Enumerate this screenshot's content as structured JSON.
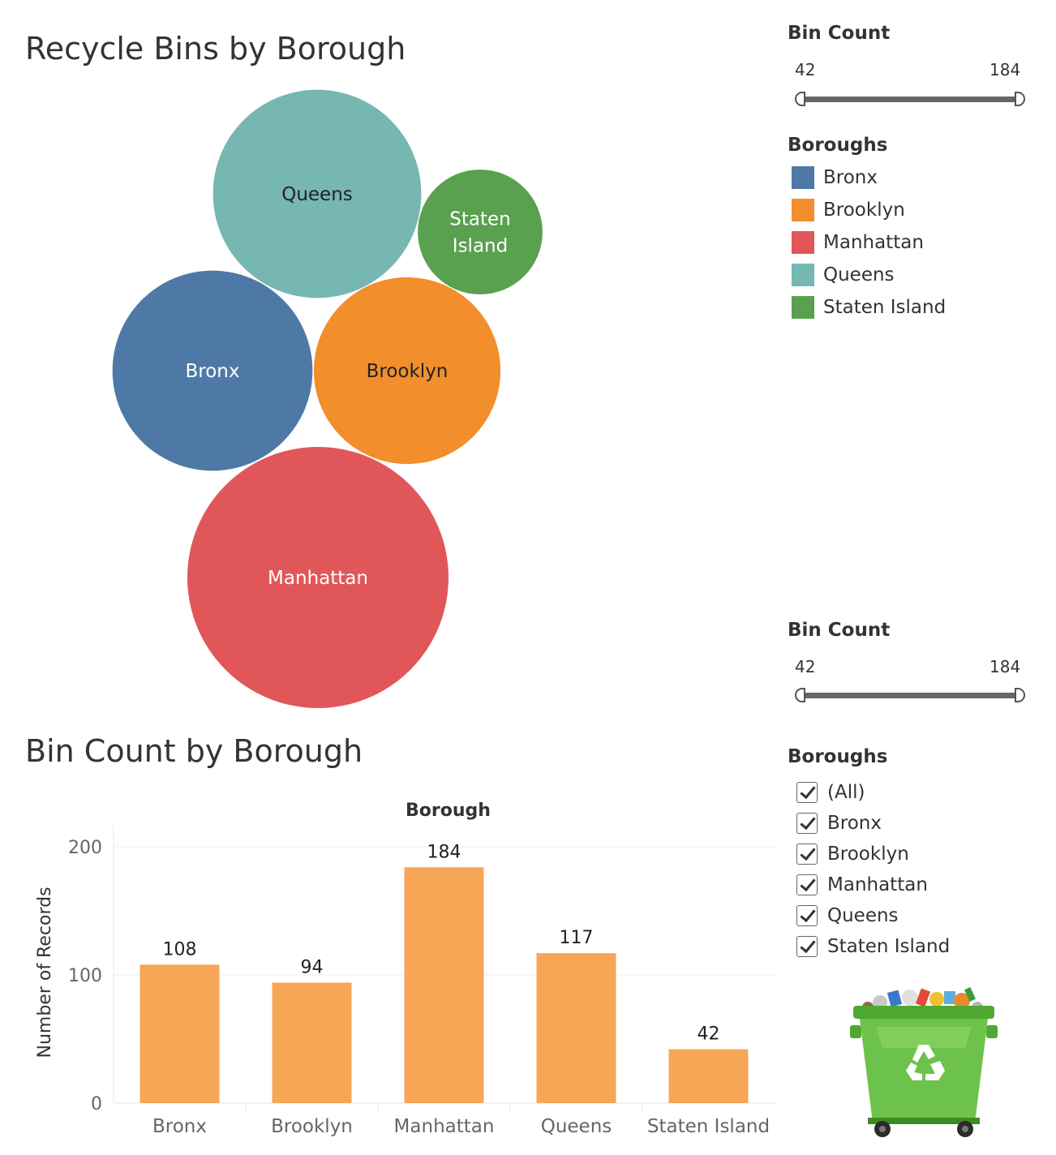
{
  "bubble_title": "Recycle Bins by Borough",
  "bar_title": "Bin Count by Borough",
  "filters_top": {
    "bin_count_title": "Bin Count",
    "min_label": "42",
    "max_label": "184",
    "legend_title": "Boroughs",
    "legend": [
      {
        "label": "Bronx",
        "color": "#4e79a7"
      },
      {
        "label": "Brooklyn",
        "color": "#f28e2b"
      },
      {
        "label": "Manhattan",
        "color": "#e15759"
      },
      {
        "label": "Queens",
        "color": "#76b7b2"
      },
      {
        "label": "Staten Island",
        "color": "#59a14f"
      }
    ]
  },
  "filters_bottom": {
    "bin_count_title": "Bin Count",
    "min_label": "42",
    "max_label": "184",
    "checklist_title": "Boroughs",
    "checklist": [
      "(All)",
      "Bronx",
      "Brooklyn",
      "Manhattan",
      "Queens",
      "Staten Island"
    ]
  },
  "decoration": {
    "icon": "recycle-bin-icon",
    "bin_color": "#6cc24a",
    "symbol_color": "#ffffff"
  },
  "chart_data": [
    {
      "type": "bubble",
      "title": "Recycle Bins by Borough",
      "labels": [
        "Queens",
        "Staten Island",
        "Bronx",
        "Brooklyn",
        "Manhattan"
      ],
      "values": [
        117,
        42,
        108,
        94,
        184
      ],
      "colors": [
        "#76b7b2",
        "#59a14f",
        "#4e79a7",
        "#f28e2b",
        "#e15759"
      ],
      "label_colors": [
        "#222222",
        "#ffffff",
        "#ffffff",
        "#222222",
        "#ffffff"
      ]
    },
    {
      "type": "bar",
      "title": "Bin Count by Borough",
      "xlabel": "Borough",
      "ylabel": "Number of Records",
      "categories": [
        "Bronx",
        "Brooklyn",
        "Manhattan",
        "Queens",
        "Staten Island"
      ],
      "values": [
        108,
        94,
        184,
        117,
        42
      ],
      "ylim": [
        0,
        200
      ],
      "yticks": [
        0,
        100,
        200
      ],
      "bar_color": "#f7a656",
      "grid": true
    }
  ]
}
